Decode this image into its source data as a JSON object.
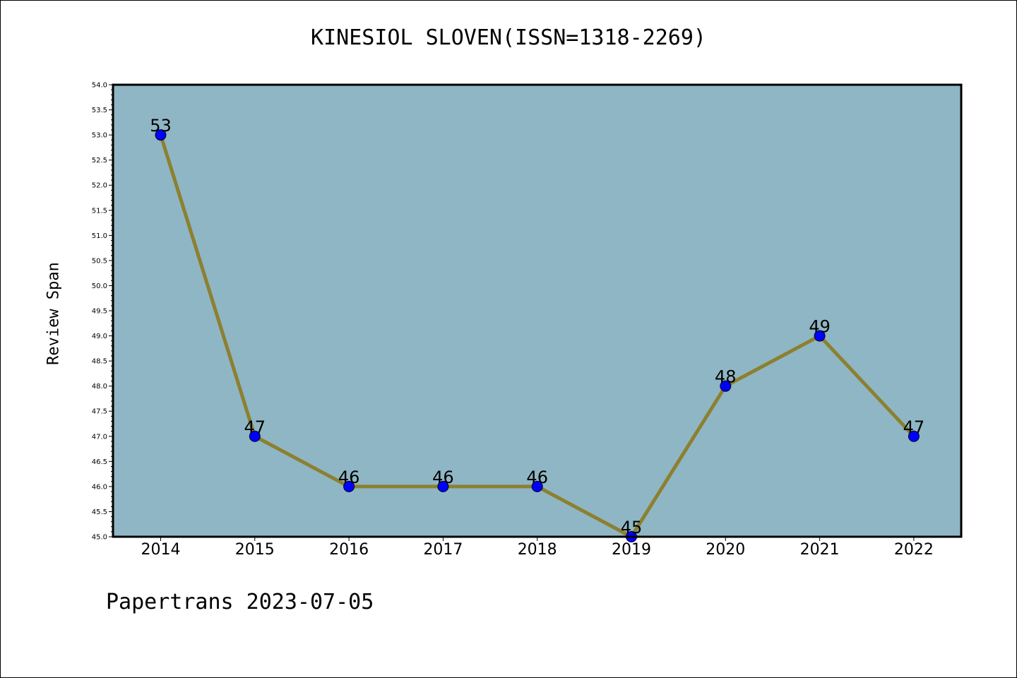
{
  "chart_data": {
    "type": "line",
    "title": "KINESIOL SLOVEN(ISSN=1318-2269)",
    "xlabel": "",
    "ylabel": "Review Span",
    "categories": [
      "2014",
      "2015",
      "2016",
      "2017",
      "2018",
      "2019",
      "2020",
      "2021",
      "2022"
    ],
    "series": [
      {
        "values": [
          53,
          47,
          46,
          46,
          46,
          45,
          48,
          49,
          47
        ]
      }
    ],
    "data_labels": [
      "53",
      "47",
      "46",
      "46",
      "46",
      "45",
      "48",
      "49",
      "47"
    ],
    "ylim": [
      45.0,
      54.0
    ],
    "y_major_step": 0.5,
    "y_minor_step": 0.1,
    "y_tick_labels": [
      "45.0",
      "45.5",
      "46.0",
      "46.5",
      "47.0",
      "47.5",
      "48.0",
      "48.5",
      "49.0",
      "49.5",
      "50.0",
      "50.5",
      "51.0",
      "51.5",
      "52.0",
      "52.5",
      "53.0",
      "53.5",
      "54.0"
    ],
    "grid": false,
    "colors": {
      "plot_background": "#8fb6c4",
      "line": "#8c8030",
      "marker": "#0000ff",
      "axis": "#000000"
    }
  },
  "footer": "Papertrans 2023-07-05"
}
